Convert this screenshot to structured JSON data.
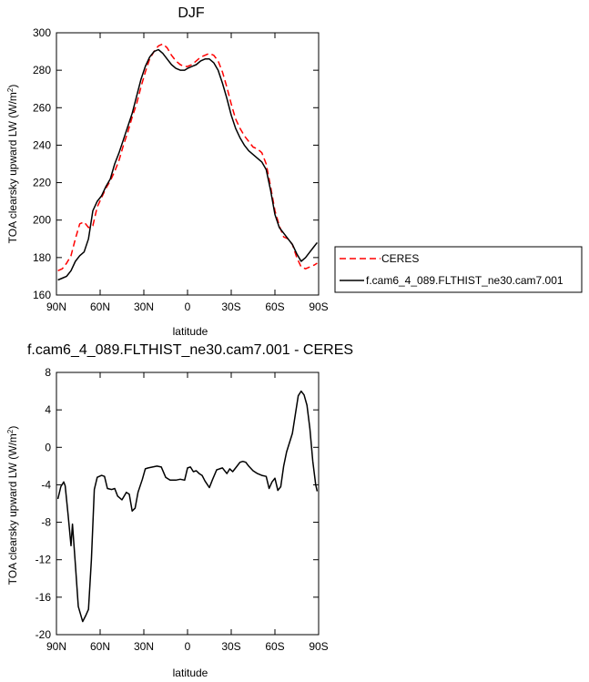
{
  "chart_data": [
    {
      "type": "line",
      "title": "DJF",
      "xlabel": "latitude",
      "ylabel": "TOA clearsky upward LW (W/m²)",
      "xlim": [
        -90,
        90
      ],
      "ylim": [
        160,
        300
      ],
      "xticks": [
        -90,
        -60,
        -30,
        0,
        30,
        60,
        90
      ],
      "xticklabels": [
        "90N",
        "60N",
        "30N",
        "0",
        "30S",
        "60S",
        "90S"
      ],
      "yticks": [
        160,
        180,
        200,
        220,
        240,
        260,
        280,
        300
      ],
      "yticklabels": [
        "160",
        "180",
        "200",
        "220",
        "240",
        "260",
        "280",
        "300"
      ],
      "legend": "right",
      "series": [
        {
          "name": "CERES",
          "color": "#ff0000",
          "dash": true,
          "x": [
            -89,
            -86,
            -83,
            -80,
            -77,
            -74,
            -71,
            -68,
            -65,
            -62,
            -59,
            -56,
            -53,
            -50,
            -47,
            -44,
            -41,
            -38,
            -35,
            -32,
            -29,
            -26,
            -23,
            -20,
            -17,
            -14,
            -11,
            -8,
            -5,
            -2,
            0,
            3,
            6,
            9,
            12,
            15,
            18,
            21,
            24,
            27,
            30,
            33,
            36,
            39,
            42,
            45,
            48,
            51,
            54,
            57,
            60,
            63,
            66,
            69,
            72,
            75,
            78,
            81,
            84,
            87,
            89
          ],
          "y": [
            173,
            174,
            177,
            181,
            190,
            198,
            199,
            196,
            197,
            207,
            212,
            217,
            221,
            226,
            232,
            240,
            247,
            255,
            262,
            271,
            279,
            286,
            290,
            293,
            294,
            292,
            288,
            285,
            283,
            282,
            282,
            283,
            285,
            287,
            288,
            289,
            288,
            285,
            279,
            271,
            262,
            254,
            249,
            245,
            242,
            239,
            238,
            236,
            230,
            218,
            205,
            197,
            191,
            190,
            187,
            180,
            175,
            174,
            175,
            176,
            177
          ]
        },
        {
          "name": "f.cam6_4_089.FLTHIST_ne30.cam7.001",
          "color": "#000000",
          "dash": false,
          "x": [
            -89,
            -86,
            -83,
            -80,
            -77,
            -74,
            -71,
            -68,
            -65,
            -62,
            -59,
            -56,
            -53,
            -50,
            -47,
            -44,
            -41,
            -38,
            -35,
            -32,
            -29,
            -26,
            -23,
            -20,
            -17,
            -14,
            -11,
            -8,
            -5,
            -2,
            0,
            3,
            6,
            9,
            12,
            15,
            18,
            21,
            24,
            27,
            30,
            33,
            36,
            39,
            42,
            45,
            48,
            51,
            54,
            57,
            60,
            63,
            66,
            69,
            72,
            75,
            78,
            81,
            84,
            87,
            89
          ],
          "y": [
            168,
            169,
            170,
            173,
            178,
            181,
            183,
            190,
            205,
            210,
            213,
            218,
            222,
            230,
            236,
            243,
            250,
            257,
            266,
            275,
            282,
            287,
            290,
            291,
            289,
            286,
            283,
            281,
            280,
            280,
            281,
            282,
            283,
            285,
            286,
            286,
            284,
            280,
            273,
            265,
            256,
            249,
            244,
            240,
            237,
            235,
            233,
            231,
            227,
            216,
            203,
            196,
            193,
            190,
            187,
            182,
            178,
            180,
            183,
            186,
            188
          ]
        }
      ]
    },
    {
      "type": "line",
      "title": "f.cam6_4_089.FLTHIST_ne30.cam7.001 - CERES",
      "xlabel": "latitude",
      "ylabel": "TOA clearsky upward LW (W/m²)",
      "xlim": [
        -90,
        90
      ],
      "ylim": [
        -20,
        8
      ],
      "xticks": [
        -90,
        -60,
        -30,
        0,
        30,
        60,
        90
      ],
      "xticklabels": [
        "90N",
        "60N",
        "30N",
        "0",
        "30S",
        "60S",
        "90S"
      ],
      "yticks": [
        -20,
        -16,
        -12,
        -8,
        -4,
        0,
        4,
        8
      ],
      "yticklabels": [
        "-20",
        "-16",
        "-12",
        "-8",
        "-4",
        "0",
        "4",
        "8"
      ],
      "series": [
        {
          "color": "#000000",
          "x": [
            -89,
            -87,
            -85,
            -84,
            -82,
            -80,
            -79,
            -77,
            -75,
            -72,
            -70,
            -68,
            -66,
            -64,
            -62,
            -59,
            -57,
            -55,
            -52,
            -50,
            -48,
            -45,
            -42,
            -40,
            -38,
            -36,
            -34,
            -31,
            -29,
            -27,
            -24,
            -21,
            -18,
            -15,
            -12,
            -10,
            -8,
            -5,
            -2,
            0,
            2,
            4,
            6,
            8,
            10,
            12,
            15,
            17,
            20,
            22,
            24,
            27,
            29,
            31,
            34,
            36,
            38,
            40,
            42,
            45,
            48,
            51,
            54,
            56,
            58,
            60,
            62,
            64,
            66,
            68,
            70,
            72,
            74,
            76,
            78,
            80,
            82,
            84,
            86,
            88,
            89
          ],
          "y": [
            -5.5,
            -4.2,
            -3.7,
            -4.1,
            -7.2,
            -10.5,
            -8.2,
            -12.5,
            -17.0,
            -18.6,
            -18.0,
            -17.3,
            -12.0,
            -4.5,
            -3.2,
            -3.0,
            -3.1,
            -4.4,
            -4.5,
            -4.4,
            -5.2,
            -5.6,
            -4.8,
            -5.0,
            -6.8,
            -6.5,
            -4.8,
            -3.4,
            -2.3,
            -2.2,
            -2.1,
            -2.0,
            -2.1,
            -3.2,
            -3.5,
            -3.5,
            -3.5,
            -3.4,
            -3.5,
            -2.2,
            -2.1,
            -2.6,
            -2.5,
            -2.8,
            -3.0,
            -3.6,
            -4.3,
            -3.5,
            -2.4,
            -2.3,
            -2.2,
            -2.8,
            -2.3,
            -2.6,
            -2.0,
            -1.6,
            -1.5,
            -1.6,
            -2.0,
            -2.5,
            -2.8,
            -3.0,
            -3.1,
            -4.4,
            -3.7,
            -3.3,
            -4.6,
            -4.2,
            -2.0,
            -0.5,
            0.5,
            1.5,
            3.5,
            5.5,
            6.0,
            5.6,
            4.5,
            2.0,
            -1.5,
            -4.0,
            -4.7
          ]
        }
      ]
    }
  ]
}
